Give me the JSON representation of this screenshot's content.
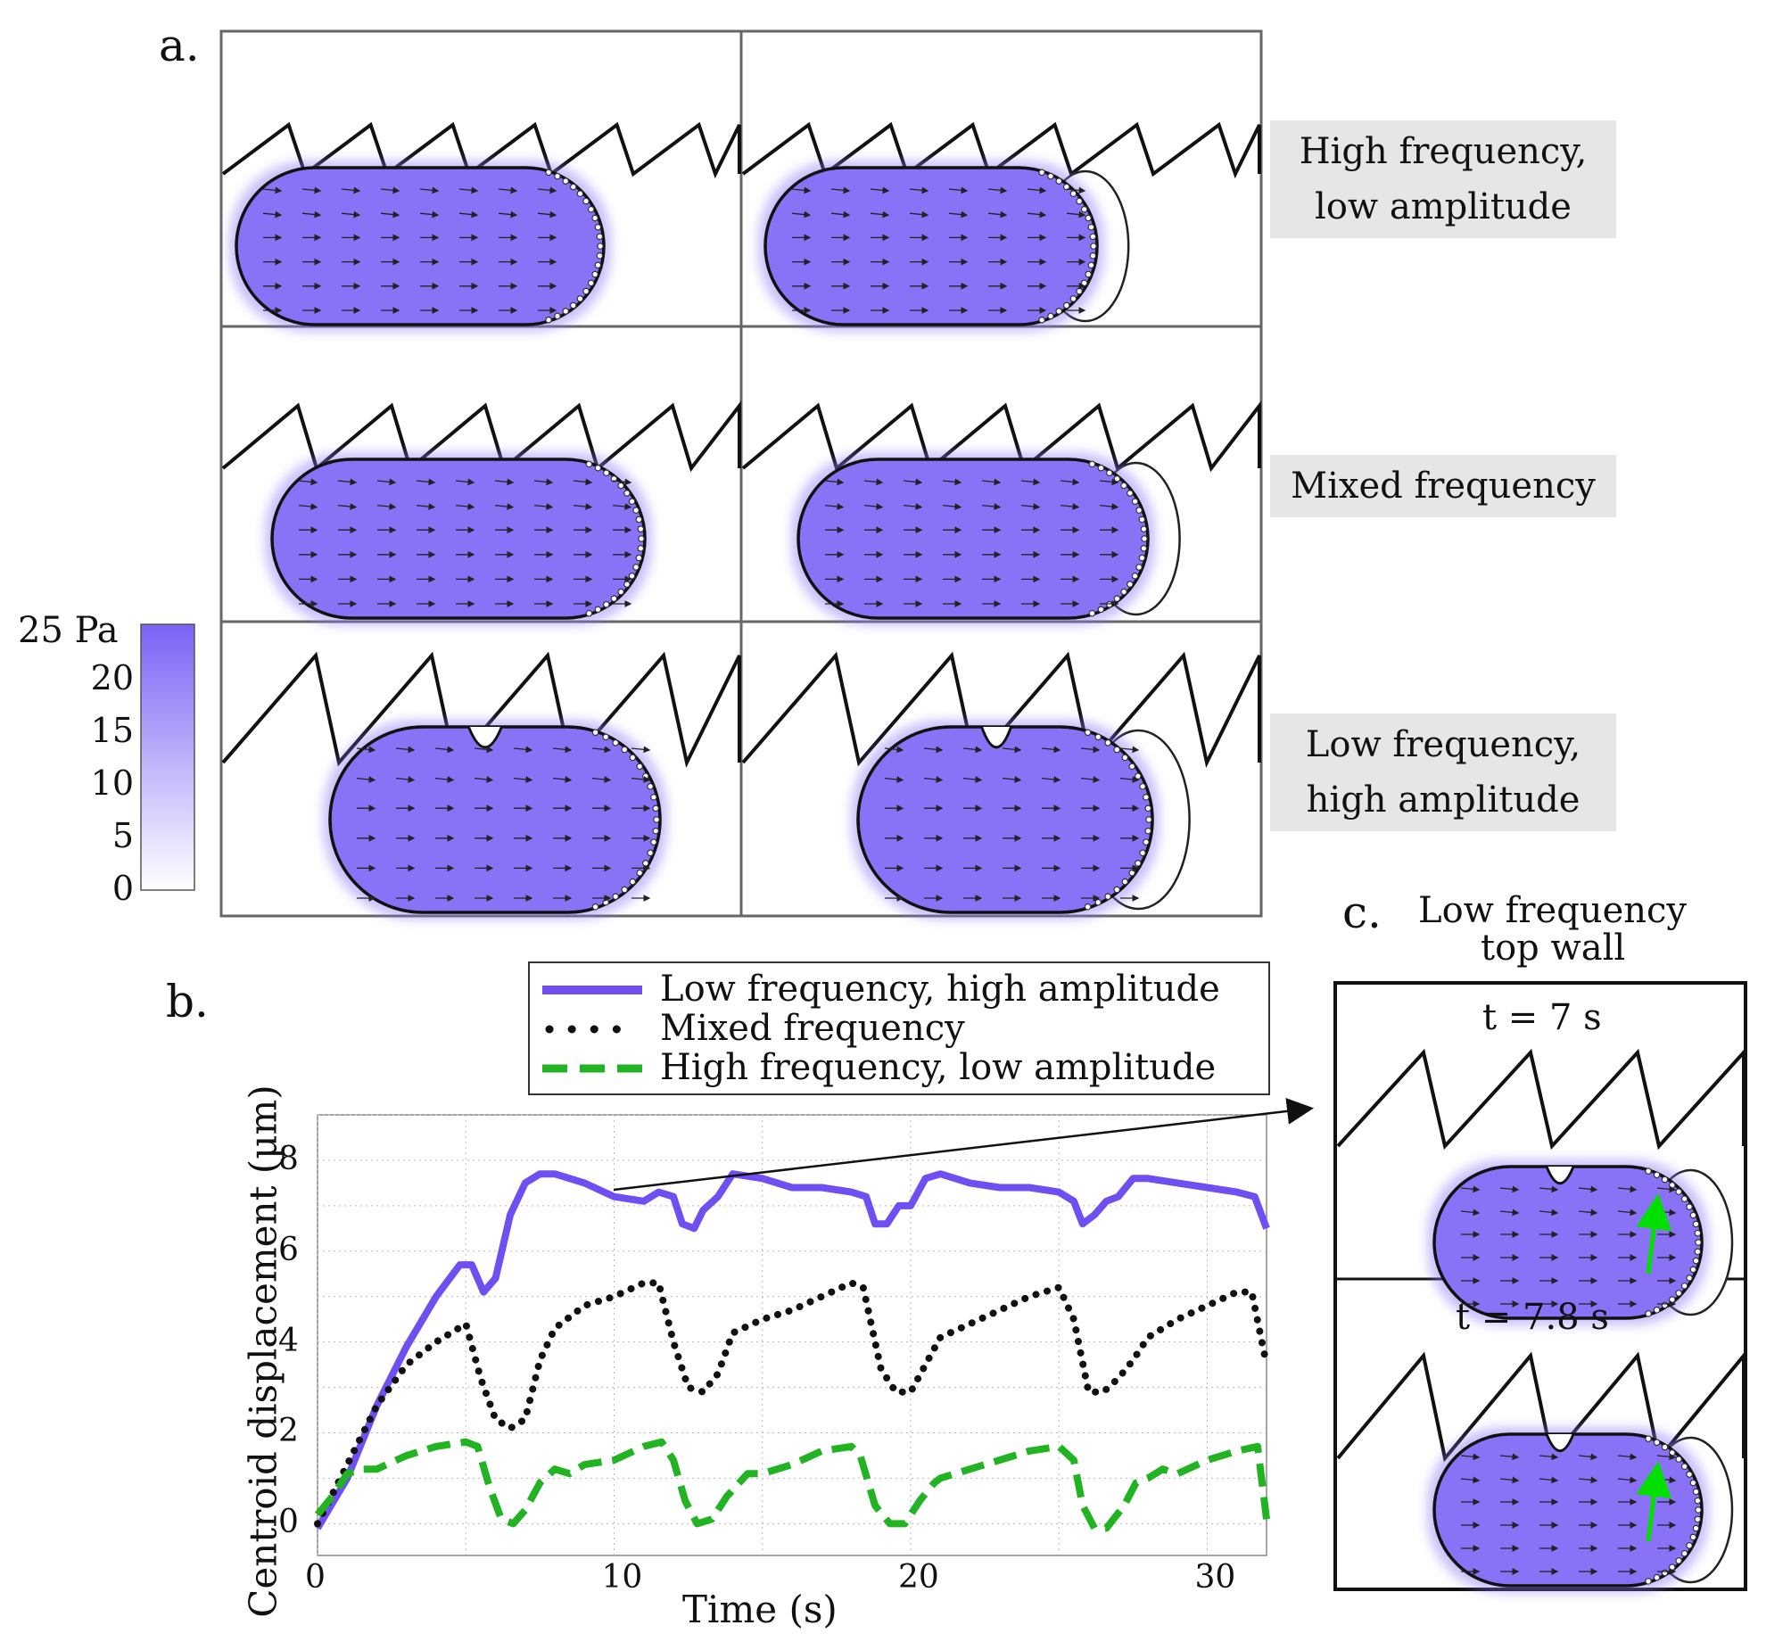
{
  "panel_a": {
    "letter": "a.",
    "rows": [
      {
        "label_line1": "High frequency,",
        "label_line2": "low amplitude"
      },
      {
        "label_line1": "Mixed frequency",
        "label_line2": ""
      },
      {
        "label_line1": "Low frequency,",
        "label_line2": "high amplitude"
      }
    ],
    "colorbar": {
      "unit_label": "25 Pa",
      "ticks": [
        "20",
        "15",
        "10",
        "5",
        "0"
      ],
      "max_color": "#7b61f5",
      "min_color": "#ffffff"
    },
    "cell_fill_color": "#8a72f7"
  },
  "panel_b": {
    "letter": "b."
  },
  "panel_c": {
    "letter": "c.",
    "title_line1": "Low frequency",
    "title_line2": "top wall",
    "frames": [
      {
        "label": "t = 7 s"
      },
      {
        "label": "t = 7.8 s"
      }
    ],
    "arrow_color": "#00e000"
  },
  "chart_data": {
    "type": "line",
    "title": "",
    "xlabel": "Time (s)",
    "ylabel": "Centroid displacement (µm)",
    "xlim": [
      0,
      32
    ],
    "ylim": [
      -0.7,
      9
    ],
    "xticks": [
      0,
      10,
      20,
      30
    ],
    "yticks": [
      0,
      2,
      4,
      6,
      8
    ],
    "grid": true,
    "legend_position": "top",
    "series": [
      {
        "name": "Low frequency, high amplitude",
        "style": "solid",
        "color": "#6f4ff2",
        "x": [
          0,
          1,
          2,
          3,
          4,
          4.8,
          5.2,
          5.6,
          6,
          6.5,
          7,
          7.5,
          8,
          9,
          10,
          11,
          11.5,
          12,
          12.3,
          12.7,
          13,
          13.5,
          14,
          15,
          16,
          17,
          18,
          18.5,
          18.8,
          19.2,
          19.6,
          20,
          20.5,
          21,
          22,
          23,
          24,
          25,
          25.5,
          25.8,
          26.2,
          26.6,
          27,
          27.5,
          28,
          29,
          30,
          31,
          31.6,
          32
        ],
        "values": [
          -0.1,
          1.0,
          2.6,
          3.9,
          5.0,
          5.7,
          5.7,
          5.1,
          5.4,
          6.8,
          7.5,
          7.7,
          7.7,
          7.5,
          7.2,
          7.1,
          7.3,
          7.2,
          6.6,
          6.5,
          6.9,
          7.2,
          7.7,
          7.6,
          7.4,
          7.4,
          7.3,
          7.2,
          6.6,
          6.6,
          7.0,
          7.0,
          7.6,
          7.7,
          7.5,
          7.4,
          7.4,
          7.3,
          7.1,
          6.6,
          6.8,
          7.1,
          7.2,
          7.6,
          7.6,
          7.5,
          7.4,
          7.3,
          7.2,
          6.5
        ]
      },
      {
        "name": "Mixed frequency",
        "style": "dotted",
        "color": "#111111",
        "x": [
          0,
          1,
          2,
          3,
          4,
          5,
          5.5,
          6,
          6.5,
          7,
          7.5,
          8,
          9,
          10,
          11,
          11.5,
          12,
          12.5,
          13,
          13.5,
          14,
          15,
          16,
          17,
          18,
          18.4,
          19,
          19.5,
          20,
          20.5,
          21,
          22,
          23,
          24,
          25,
          25.5,
          26,
          26.5,
          27,
          27.5,
          28,
          29,
          30,
          31,
          31.5,
          32
        ],
        "values": [
          0,
          1.3,
          2.6,
          3.5,
          4.0,
          4.4,
          3.2,
          2.3,
          2.1,
          2.3,
          3.6,
          4.3,
          4.8,
          5.0,
          5.3,
          5.3,
          4.0,
          3.0,
          2.9,
          3.3,
          4.2,
          4.5,
          4.7,
          5.0,
          5.3,
          5.2,
          3.4,
          2.9,
          2.9,
          3.5,
          4.1,
          4.4,
          4.7,
          5.0,
          5.2,
          4.5,
          2.9,
          2.9,
          3.2,
          3.6,
          4.1,
          4.5,
          4.8,
          5.1,
          5.1,
          3.5
        ]
      },
      {
        "name": "High frequency, low amplitude",
        "style": "dashed",
        "color": "#22b322",
        "x": [
          0,
          0.5,
          1,
          1.5,
          2,
          3,
          4,
          5,
          5.4,
          5.8,
          6.2,
          6.6,
          7,
          7.5,
          8,
          8.5,
          9,
          10,
          11,
          11.6,
          12,
          12.4,
          12.8,
          13.3,
          13.8,
          14.5,
          15,
          16,
          17,
          18,
          18.3,
          18.8,
          19.3,
          19.8,
          20.3,
          20.8,
          21,
          22,
          23,
          24,
          25,
          25.5,
          25.8,
          26.2,
          26.6,
          27.2,
          27.6,
          28,
          28.5,
          29,
          30,
          31,
          31.7,
          32
        ],
        "values": [
          0.2,
          0.6,
          1.1,
          1.2,
          1.2,
          1.5,
          1.7,
          1.8,
          1.7,
          0.8,
          0.1,
          0.0,
          0.3,
          0.9,
          1.2,
          1.1,
          1.3,
          1.4,
          1.7,
          1.8,
          1.4,
          0.5,
          0.0,
          0.1,
          0.6,
          1.1,
          1.1,
          1.3,
          1.6,
          1.7,
          1.5,
          0.4,
          0.0,
          0.0,
          0.5,
          0.9,
          1.0,
          1.2,
          1.4,
          1.6,
          1.7,
          1.4,
          0.4,
          -0.1,
          -0.1,
          0.4,
          0.9,
          1.0,
          1.2,
          1.1,
          1.4,
          1.6,
          1.7,
          0.1
        ]
      }
    ],
    "annotation": "arrow from chart to panel c"
  }
}
